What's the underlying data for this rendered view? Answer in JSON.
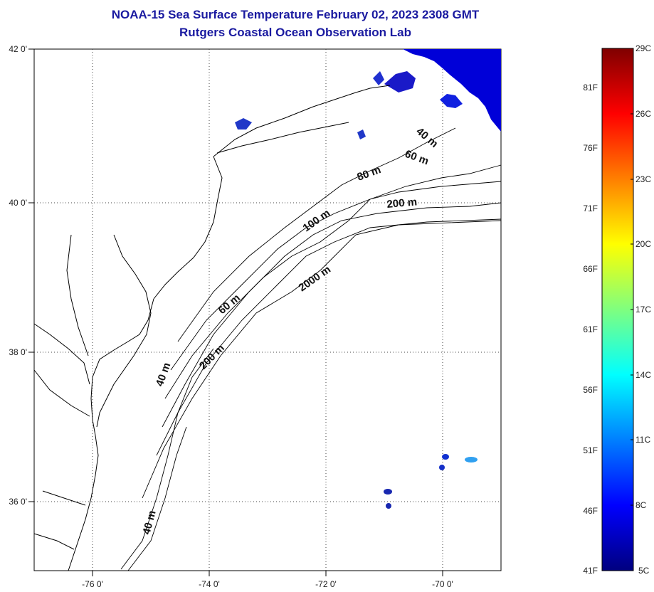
{
  "header": {
    "title": "NOAA-15 Sea Surface Temperature February 02, 2023 2308 GMT",
    "subtitle": "Rutgers Coastal Ocean Observation Lab"
  },
  "map": {
    "lat_labels": [
      "42 0'",
      "40 0'",
      "38 0'",
      "36 0'"
    ],
    "lon_labels": [
      "-76 0'",
      "-74 0'",
      "-72 0'",
      "-70 0'"
    ],
    "lat_range": [
      35,
      42
    ],
    "lon_range": [
      -77,
      -69
    ],
    "depth_labels": [
      "40 m",
      "60 m",
      "80 m",
      "200 m",
      "100 m",
      "2000 m",
      "60 m",
      "40 m",
      "200 m",
      "40 m"
    ]
  },
  "colorbar": {
    "celsius_labels": [
      "29C",
      "26C",
      "23C",
      "20C",
      "17C",
      "14C",
      "11C",
      "8C",
      "5C"
    ],
    "fahrenheit_labels": [
      "81F",
      "76F",
      "71F",
      "66F",
      "61F",
      "56F",
      "51F",
      "46F",
      "41F"
    ],
    "range_c": [
      5,
      29
    ],
    "colors": [
      "#00007f",
      "#0000ff",
      "#007fff",
      "#00ffff",
      "#7fff7f",
      "#ffff00",
      "#ff7f00",
      "#ff0000",
      "#7f0000"
    ]
  }
}
